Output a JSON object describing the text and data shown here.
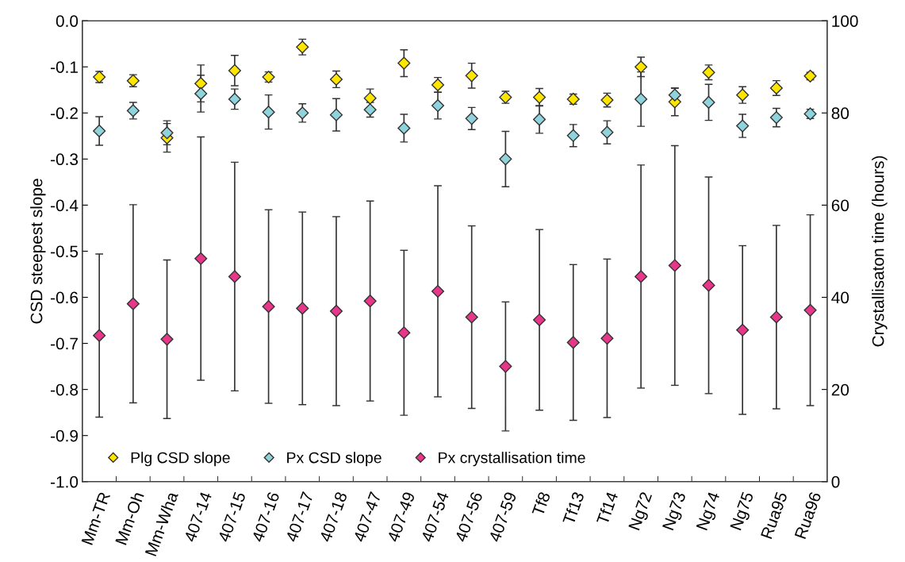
{
  "chart_data": {
    "type": "scatter",
    "xlabel": null,
    "ylabel": "CSD steepest slope",
    "y2label": "Crystallisaton time (hours)",
    "categories": [
      "Mm-TR",
      "Mm-Oh",
      "Mm-Wha",
      "407-14",
      "407-15",
      "407-16",
      "407-17",
      "407-18",
      "407-47",
      "407-49",
      "407-54",
      "407-56",
      "407-59",
      "Tf8",
      "Tf13",
      "Tf14",
      "Ng72",
      "Ng73",
      "Ng74",
      "Ng75",
      "Rua95",
      "Rua96"
    ],
    "ylim": [
      -1.0,
      0.0
    ],
    "yticks": [
      {
        "value": -1.0,
        "label": "-1.0"
      },
      {
        "value": -0.9,
        "label": "-0.9"
      },
      {
        "value": -0.8,
        "label": "-0.8"
      },
      {
        "value": -0.7,
        "label": "-0.7"
      },
      {
        "value": -0.6,
        "label": "-0.6"
      },
      {
        "value": -0.5,
        "label": "-0.5"
      },
      {
        "value": -0.4,
        "label": "-0.4"
      },
      {
        "value": -0.3,
        "label": "-0.3"
      },
      {
        "value": -0.2,
        "label": "-0.2"
      },
      {
        "value": -0.1,
        "label": "-0.1"
      },
      {
        "value": 0.0,
        "label": "0.0"
      }
    ],
    "y2lim": [
      0,
      100
    ],
    "y2ticks": [
      0,
      20,
      40,
      60,
      80,
      100
    ],
    "grid": false,
    "legend": "bottom left",
    "marker": "diamond",
    "series": [
      {
        "name": "Plg CSD slope",
        "color": "#ffe600",
        "values": [
          -0.122,
          -0.13,
          -0.254,
          -0.136,
          -0.108,
          -0.122,
          -0.057,
          -0.127,
          -0.168,
          -0.092,
          -0.139,
          -0.119,
          -0.166,
          -0.166,
          -0.17,
          -0.172,
          -0.1,
          -0.176,
          -0.112,
          -0.161,
          -0.146,
          -0.12
        ],
        "errors": [
          0.012,
          0.013,
          0.031,
          0.04,
          0.033,
          0.011,
          0.017,
          0.018,
          0.02,
          0.029,
          0.016,
          0.027,
          0.013,
          0.019,
          0.011,
          0.015,
          0.021,
          0.03,
          0.016,
          0.018,
          0.016,
          0.008
        ]
      },
      {
        "name": "Px CSD slope",
        "color": "#8fd3dc",
        "values": [
          -0.239,
          -0.195,
          -0.243,
          -0.158,
          -0.17,
          -0.198,
          -0.2,
          -0.204,
          -0.193,
          -0.233,
          -0.184,
          -0.212,
          -0.3,
          -0.214,
          -0.249,
          -0.242,
          -0.17,
          -0.161,
          -0.177,
          -0.228,
          -0.21,
          -0.202
        ],
        "errors": [
          0.031,
          0.018,
          0.026,
          0.04,
          0.022,
          0.037,
          0.02,
          0.035,
          0.016,
          0.03,
          0.029,
          0.024,
          0.06,
          0.03,
          0.024,
          0.025,
          0.059,
          0.015,
          0.039,
          0.025,
          0.02,
          0.01
        ]
      },
      {
        "name": "Px crystallisation time",
        "color": "#e8378a",
        "axis": "y2",
        "values": [
          31.7,
          38.6,
          30.9,
          48.4,
          44.5,
          38.0,
          37.6,
          37.0,
          39.2,
          32.3,
          41.3,
          35.7,
          25.0,
          35.1,
          30.2,
          31.1,
          44.5,
          46.9,
          42.6,
          32.9,
          35.7,
          37.2
        ],
        "errors": [
          17.7,
          21.5,
          17.2,
          26.4,
          24.8,
          21.0,
          20.9,
          20.5,
          21.7,
          17.9,
          22.9,
          19.8,
          14.0,
          19.6,
          16.9,
          17.2,
          24.2,
          26.0,
          23.5,
          18.3,
          19.9,
          20.7
        ]
      }
    ]
  }
}
